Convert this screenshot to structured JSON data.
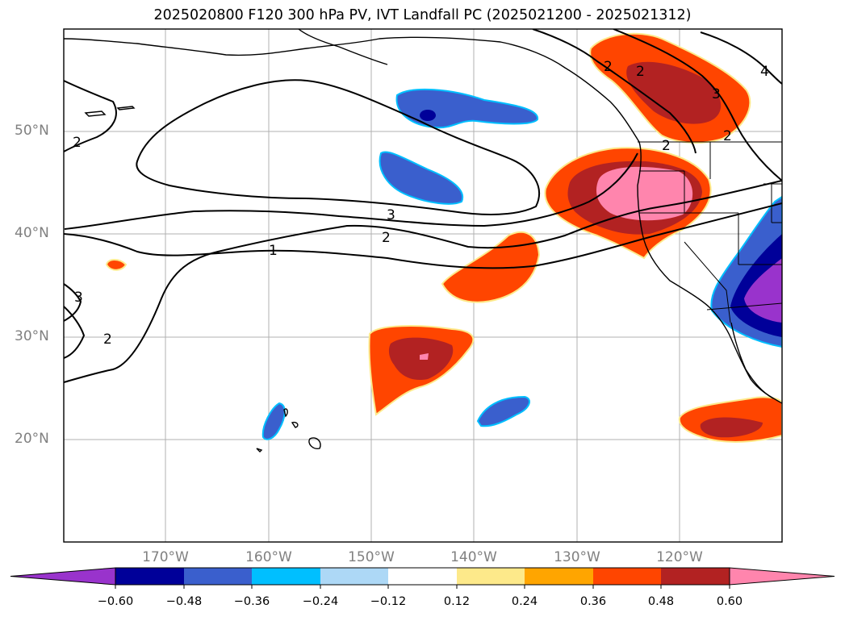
{
  "title": "2025020800 F120 300 hPa PV, IVT Landfall PC (2025021200 - 2025021312)",
  "map": {
    "lat_ticks": [
      "50°N",
      "40°N",
      "30°N",
      "20°N"
    ],
    "lon_ticks": [
      "170°W",
      "160°W",
      "150°W",
      "140°W",
      "130°W",
      "120°W"
    ],
    "contour_labels": [
      "1",
      "2",
      "3",
      "2",
      "2",
      "3",
      "2",
      "3",
      "2",
      "2",
      "4",
      "2"
    ]
  },
  "colorbar": {
    "ticks": [
      "−0.60",
      "−0.48",
      "−0.36",
      "−0.24",
      "−0.12",
      "0.12",
      "0.24",
      "0.36",
      "0.48",
      "0.60"
    ],
    "colors": [
      "#9933cc",
      "#000099",
      "#3a5fcd",
      "#00bfff",
      "#add8f6",
      "#ffffff",
      "#fde98a",
      "#ffa500",
      "#ff4500",
      "#b22222",
      "#ff85ad"
    ]
  }
}
